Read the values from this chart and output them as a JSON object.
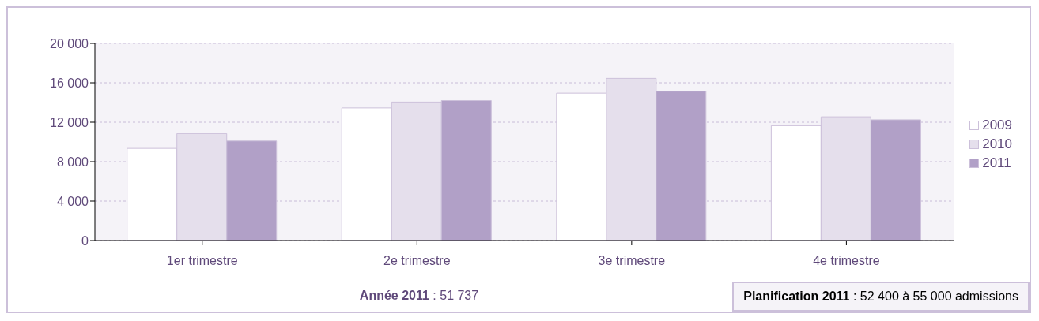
{
  "chart_data": {
    "type": "bar",
    "categories": [
      "1er trimestre",
      "2e trimestre",
      "3e trimestre",
      "4e trimestre"
    ],
    "series": [
      {
        "name": "2009",
        "color": "#ffffff",
        "values": [
          9350,
          13450,
          14950,
          11650
        ]
      },
      {
        "name": "2010",
        "color": "#e5dfec",
        "values": [
          10850,
          14050,
          16450,
          12550
        ]
      },
      {
        "name": "2011",
        "color": "#b1a0c7",
        "values": [
          10100,
          14200,
          15150,
          12250
        ]
      }
    ],
    "ylim": [
      0,
      20000
    ],
    "yticks": [
      {
        "value": 0,
        "label": "0"
      },
      {
        "value": 4000,
        "label": "4 000"
      },
      {
        "value": 8000,
        "label": "8 000"
      },
      {
        "value": 12000,
        "label": "12 000"
      },
      {
        "value": 16000,
        "label": "16 000"
      },
      {
        "value": 20000,
        "label": "20 000"
      }
    ],
    "grid": "y",
    "legend": "right",
    "annotations": [
      "Année 2011 : 51 737",
      "Planification 2011 : 52 400 à 55 000 admissions"
    ]
  }
}
